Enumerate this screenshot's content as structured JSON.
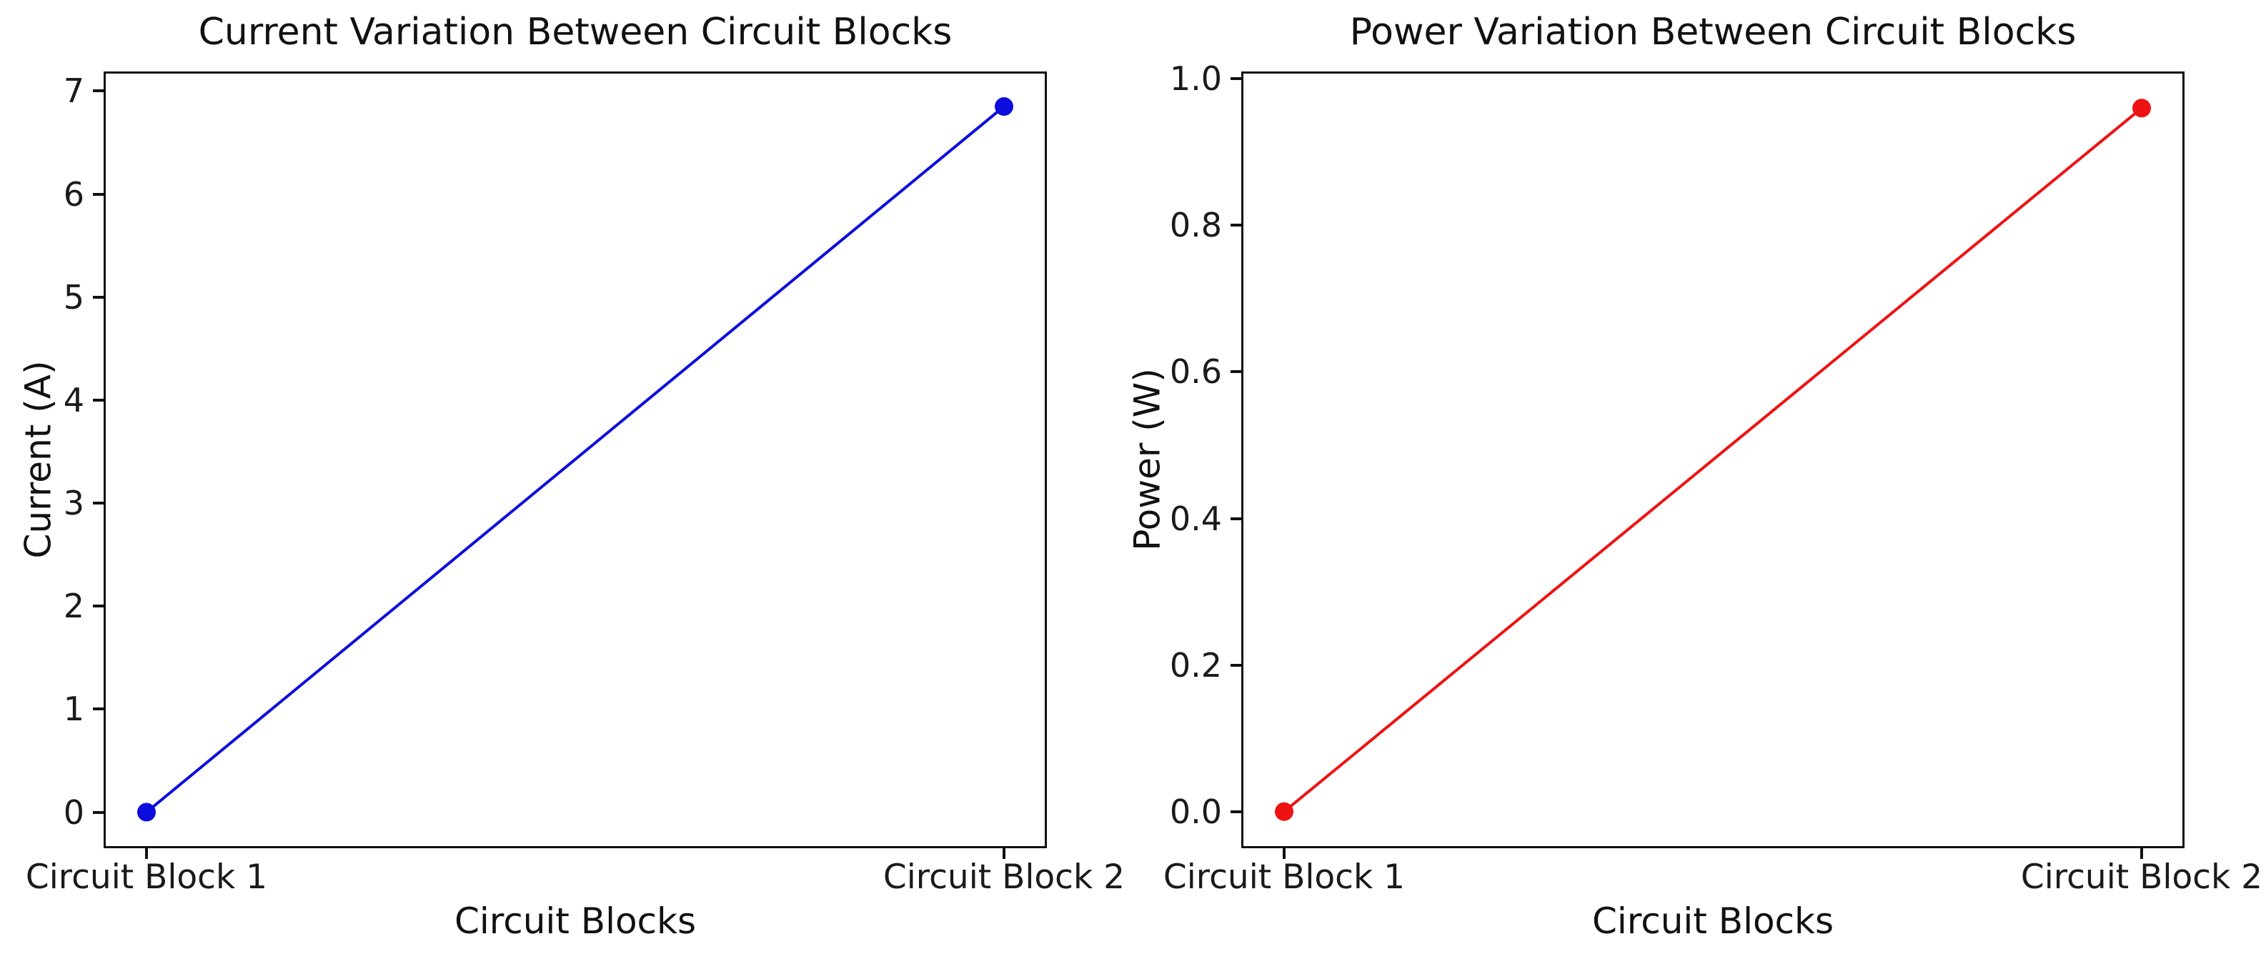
{
  "figure": {
    "background": "#ffffff",
    "frame_color": "#111111",
    "text_color": "#111111"
  },
  "chart_data": [
    {
      "type": "line",
      "title": "Current Variation Between Circuit Blocks",
      "xlabel": "Circuit Blocks",
      "ylabel": "Current (A)",
      "categories": [
        "Circuit Block 1",
        "Circuit Block 2"
      ],
      "x": [
        0,
        1
      ],
      "values": [
        0,
        6.85
      ],
      "series_color": "#0d0ddd",
      "marker": "circle",
      "line_style": "solid",
      "xlim": [
        -0.05,
        1.05
      ],
      "ylim": [
        -0.35,
        7.19
      ],
      "ytick_values": [
        0,
        1,
        2,
        3,
        4,
        5,
        6,
        7
      ],
      "ytick_labels": [
        "0",
        "1",
        "2",
        "3",
        "4",
        "5",
        "6",
        "7"
      ],
      "grid": false,
      "legend": null
    },
    {
      "type": "line",
      "title": "Power Variation Between Circuit Blocks",
      "xlabel": "Circuit Blocks",
      "ylabel": "Power (W)",
      "categories": [
        "Circuit Block 1",
        "Circuit Block 2"
      ],
      "x": [
        0,
        1
      ],
      "values": [
        0,
        0.96
      ],
      "series_color": "#ee1212",
      "marker": "circle",
      "line_style": "solid",
      "xlim": [
        -0.05,
        1.05
      ],
      "ylim": [
        -0.05,
        1.01
      ],
      "ytick_values": [
        0.0,
        0.2,
        0.4,
        0.6,
        0.8,
        1.0
      ],
      "ytick_labels": [
        "0.0",
        "0.2",
        "0.4",
        "0.6",
        "0.8",
        "1.0"
      ],
      "grid": false,
      "legend": null
    }
  ]
}
